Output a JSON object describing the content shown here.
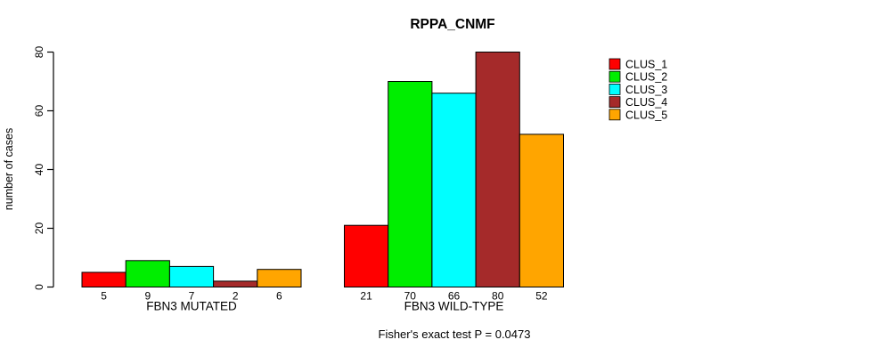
{
  "page": {
    "background_color": "#FFFFFF",
    "text_color": "#000000",
    "axis_color": "#000000"
  },
  "chart_data": {
    "type": "bar",
    "title": "RPPA_CNMF",
    "ylabel": "number of cases",
    "xlabel": "",
    "ylim": [
      0,
      80
    ],
    "yticks": [
      0,
      20,
      40,
      60,
      80
    ],
    "grid": false,
    "legend_position": "right",
    "bar_value_labels_shown": true,
    "categories": [
      "FBN3 MUTATED",
      "FBN3 WILD-TYPE"
    ],
    "series": [
      {
        "name": "CLUS_1",
        "color": "#FF0000",
        "values": [
          5,
          21
        ]
      },
      {
        "name": "CLUS_2",
        "color": "#00EE00",
        "values": [
          9,
          70
        ]
      },
      {
        "name": "CLUS_3",
        "color": "#00FFFF",
        "values": [
          7,
          66
        ]
      },
      {
        "name": "CLUS_4",
        "color": "#A52A2A",
        "values": [
          2,
          80
        ]
      },
      {
        "name": "CLUS_5",
        "color": "#FFA500",
        "values": [
          6,
          52
        ]
      }
    ],
    "annotation": "Fisher's exact test P = 0.0473"
  }
}
